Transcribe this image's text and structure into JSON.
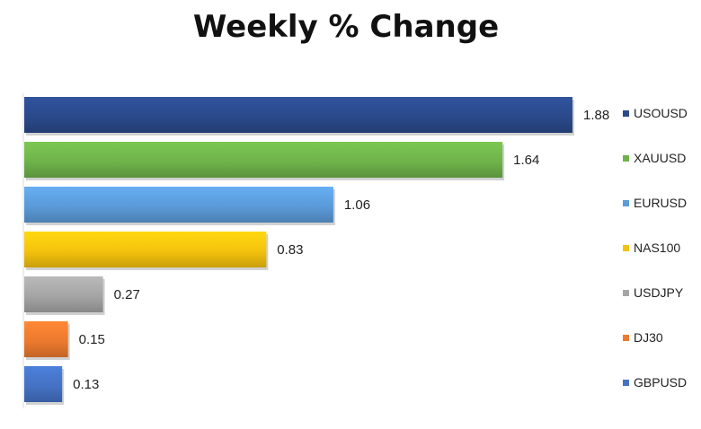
{
  "chart_data": {
    "type": "bar",
    "orientation": "horizontal",
    "title": "Weekly % Change",
    "categories": [
      "USOUSD",
      "XAUUSD",
      "EURUSD",
      "NAS100",
      "USDJPY",
      "DJ30",
      "GBPUSD"
    ],
    "values": [
      1.88,
      1.64,
      1.06,
      0.83,
      0.27,
      0.15,
      0.13
    ],
    "data_labels": [
      "1.88",
      "1.64",
      "1.06",
      "0.83",
      "0.27",
      "0.15",
      "0.13"
    ],
    "colors": [
      "#2b4a8c",
      "#6fb34a",
      "#5b9bd9",
      "#f4c20d",
      "#a5a5a5",
      "#ec7a2e",
      "#4472c4"
    ],
    "xlim": [
      0,
      1.88
    ],
    "grid": false,
    "legend": "right"
  }
}
